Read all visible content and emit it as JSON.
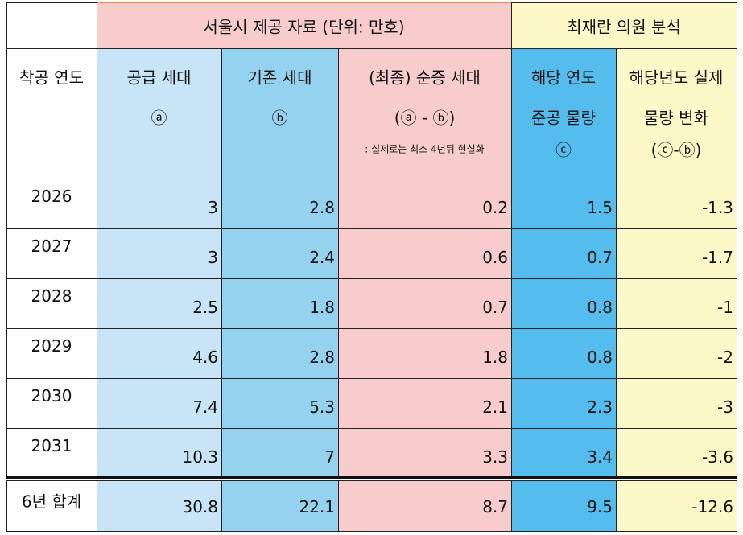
{
  "header": {
    "group1": "서울시 제공 자료 (단위: 만호)",
    "group2": "최재란 의원 분석"
  },
  "columns": [
    {
      "lines": [
        "착공 연도"
      ]
    },
    {
      "lines": [
        "공급 세대",
        "ⓐ"
      ]
    },
    {
      "lines": [
        "기존 세대",
        "ⓑ"
      ]
    },
    {
      "lines": [
        "(최종) 순증 세대",
        "(ⓐ - ⓑ)",
        ": 실제로는 최소 4년뒤 현실화"
      ]
    },
    {
      "lines": [
        "해당 연도",
        "준공 물량",
        "ⓒ"
      ]
    },
    {
      "lines": [
        "해당년도 실제",
        "물량 변화",
        "(ⓒ-ⓑ)"
      ]
    }
  ],
  "rows": [
    [
      "2026",
      3,
      2.8,
      0.2,
      1.5,
      -1.3
    ],
    [
      "2027",
      3,
      2.4,
      0.6,
      0.7,
      -1.7
    ],
    [
      "2028",
      2.5,
      1.8,
      0.7,
      0.8,
      -1
    ],
    [
      "2029",
      4.6,
      2.8,
      1.8,
      0.8,
      -2
    ],
    [
      "2030",
      7.4,
      5.3,
      2.1,
      2.3,
      -3
    ],
    [
      "2031",
      10.3,
      7,
      3.3,
      3.4,
      -3.6
    ]
  ],
  "total": {
    "label": "6년 합계",
    "values": [
      30.8,
      22.1,
      8.7,
      9.5,
      -12.6
    ]
  }
}
